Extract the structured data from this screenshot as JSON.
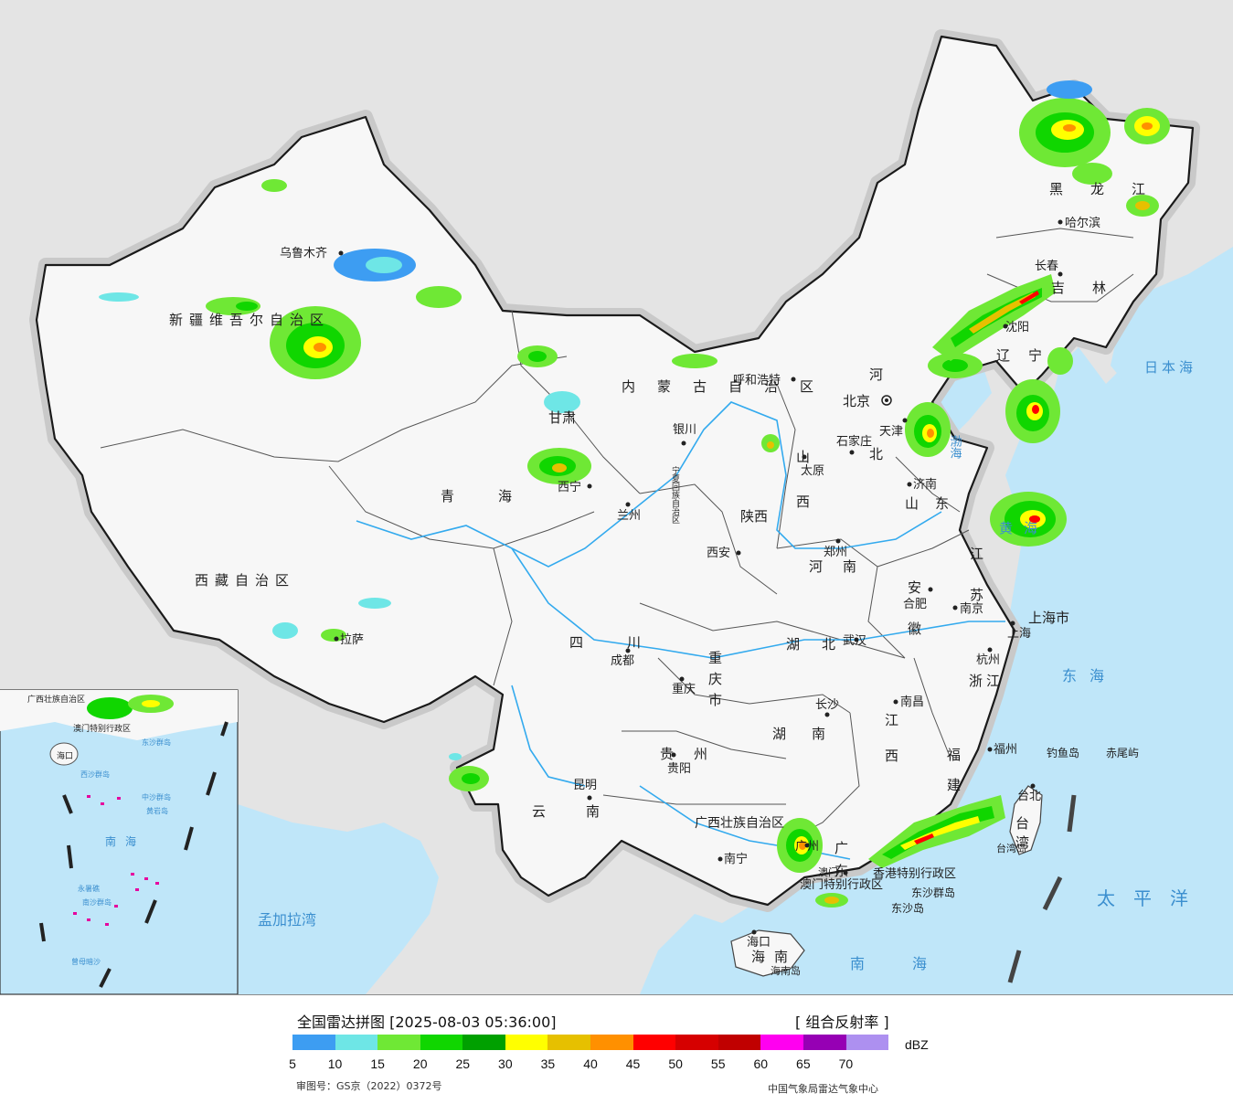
{
  "legend": {
    "title": "全国雷达拼图 [2025-08-03 05:36:00]",
    "product": "[ 组合反射率 ]",
    "unit": "dBZ",
    "ticks": [
      "5",
      "10",
      "15",
      "20",
      "25",
      "30",
      "35",
      "40",
      "45",
      "50",
      "55",
      "60",
      "65",
      "70"
    ],
    "colors": [
      "#3d9df2",
      "#6ee6e6",
      "#6fe835",
      "#10d600",
      "#00a000",
      "#ffff00",
      "#e6c000",
      "#ff9000",
      "#ff0000",
      "#d60000",
      "#c00000",
      "#ff00f0",
      "#9600b4",
      "#ad90f0"
    ],
    "map_approval": "审图号：GS京（2022）0372号",
    "credit": "中国气象局雷达气象中心"
  },
  "map": {
    "colors": {
      "sea": "#bfe6f9",
      "land": "#f7f7f7",
      "foreign": "#e4e4e4",
      "border": "#1a1a1a",
      "river": "#33aaee"
    },
    "cities": [
      {
        "id": "urumqi",
        "name": "乌鲁木齐"
      },
      {
        "id": "lhasa",
        "name": "拉萨"
      },
      {
        "id": "xining",
        "name": "西宁"
      },
      {
        "id": "lanzhou",
        "name": "兰州"
      },
      {
        "id": "yinchuan",
        "name": "银川"
      },
      {
        "id": "hohhot",
        "name": "呼和浩特"
      },
      {
        "id": "beijing",
        "name": "北京"
      },
      {
        "id": "tianjin",
        "name": "天津"
      },
      {
        "id": "shijiazhuang",
        "name": "石家庄"
      },
      {
        "id": "taiyuan",
        "name": "太原"
      },
      {
        "id": "jinan",
        "name": "济南"
      },
      {
        "id": "zhengzhou",
        "name": "郑州"
      },
      {
        "id": "xian",
        "name": "西安"
      },
      {
        "id": "hefei",
        "name": "合肥"
      },
      {
        "id": "nanjing",
        "name": "南京"
      },
      {
        "id": "shanghai",
        "name": "上海"
      },
      {
        "id": "hangzhou",
        "name": "杭州"
      },
      {
        "id": "wuhan",
        "name": "武汉"
      },
      {
        "id": "chengdu",
        "name": "成都"
      },
      {
        "id": "chongqing",
        "name": "重庆"
      },
      {
        "id": "changsha",
        "name": "长沙"
      },
      {
        "id": "nanchang",
        "name": "南昌"
      },
      {
        "id": "fuzhou",
        "name": "福州"
      },
      {
        "id": "guiyang",
        "name": "贵阳"
      },
      {
        "id": "kunming",
        "name": "昆明"
      },
      {
        "id": "nanning",
        "name": "南宁"
      },
      {
        "id": "guangzhou",
        "name": "广州"
      },
      {
        "id": "haikou",
        "name": "海口"
      },
      {
        "id": "taibei",
        "name": "台北"
      },
      {
        "id": "harbin",
        "name": "哈尔滨"
      },
      {
        "id": "changchun",
        "name": "长春"
      },
      {
        "id": "shenyang",
        "name": "沈阳"
      },
      {
        "id": "aomen",
        "name": "澳门"
      }
    ],
    "provinces": [
      {
        "id": "xinjiang",
        "name": "新疆维吾尔自治区"
      },
      {
        "id": "xizang",
        "name": "西藏自治区"
      },
      {
        "id": "qinghai",
        "name": "青海"
      },
      {
        "id": "gansu",
        "name": "甘肃"
      },
      {
        "id": "neimenggu",
        "name": "内蒙古自治区"
      },
      {
        "id": "ningxia",
        "name": "宁夏回族自治区"
      },
      {
        "id": "shaanxi",
        "name": "陕西"
      },
      {
        "id": "shanxi",
        "name": "山西"
      },
      {
        "id": "hebei",
        "name": "河北"
      },
      {
        "id": "shandong",
        "name": "山东"
      },
      {
        "id": "henan",
        "name": "河南"
      },
      {
        "id": "jiangsu",
        "name": "江苏"
      },
      {
        "id": "anhui",
        "name": "安徽"
      },
      {
        "id": "shanghaishi",
        "name": "上海市"
      },
      {
        "id": "zhejiang",
        "name": "浙江"
      },
      {
        "id": "hubei",
        "name": "湖北"
      },
      {
        "id": "sichuan",
        "name": "四川"
      },
      {
        "id": "chongqingshi",
        "name": "重庆市"
      },
      {
        "id": "hunan",
        "name": "湖南"
      },
      {
        "id": "jiangxi",
        "name": "江西"
      },
      {
        "id": "fujian",
        "name": "福建"
      },
      {
        "id": "guizhou",
        "name": "贵州"
      },
      {
        "id": "yunnan",
        "name": "云南"
      },
      {
        "id": "guangxi",
        "name": "广西壮族自治区"
      },
      {
        "id": "guangdong",
        "name": "广东"
      },
      {
        "id": "hainan",
        "name": "海南"
      },
      {
        "id": "hainandao",
        "name": "海南岛"
      },
      {
        "id": "taiwan",
        "name": "台湾"
      },
      {
        "id": "taiwandao",
        "name": "台湾岛"
      },
      {
        "id": "heilongjiang",
        "name": "黑龙江"
      },
      {
        "id": "jilin",
        "name": "吉林"
      },
      {
        "id": "liaoning",
        "name": "辽宁"
      },
      {
        "id": "xianggang",
        "name": "香港特别行政区"
      },
      {
        "id": "aomentb",
        "name": "澳门特别行政区"
      }
    ],
    "seas": [
      {
        "id": "ribenhai",
        "name": "日本海"
      },
      {
        "id": "huanghai",
        "name": "黄海"
      },
      {
        "id": "donghai",
        "name": "东海"
      },
      {
        "id": "taipingyang",
        "name": "太平洋"
      },
      {
        "id": "nanhai",
        "name": "南海"
      },
      {
        "id": "mengjialawan",
        "name": "孟加拉湾"
      },
      {
        "id": "bohai",
        "name": "渤海"
      }
    ],
    "islands": [
      {
        "id": "diaoyudao",
        "name": "钓鱼岛"
      },
      {
        "id": "chiweiyu",
        "name": "赤尾屿"
      },
      {
        "id": "dongsha",
        "name": "东沙群岛"
      },
      {
        "id": "dongshadao",
        "name": "东沙岛"
      }
    ],
    "inset_labels": [
      {
        "id": "in_guangxi",
        "name": "广西壮族自治区"
      },
      {
        "id": "in_aomen",
        "name": "澳门特别行政区"
      },
      {
        "id": "in_haikou",
        "name": "海口"
      },
      {
        "id": "in_xisha",
        "name": "西沙群岛"
      },
      {
        "id": "in_zhongsha",
        "name": "中沙群岛"
      },
      {
        "id": "in_huangyan",
        "name": "黄岩岛"
      },
      {
        "id": "in_nansha",
        "name": "南沙群岛"
      },
      {
        "id": "in_nanhai",
        "name": "南海"
      },
      {
        "id": "in_dongsha",
        "name": "东沙群岛"
      },
      {
        "id": "in_yongshu",
        "name": "永暑礁"
      },
      {
        "id": "in_zengmu",
        "name": "曾母暗沙"
      }
    ]
  }
}
